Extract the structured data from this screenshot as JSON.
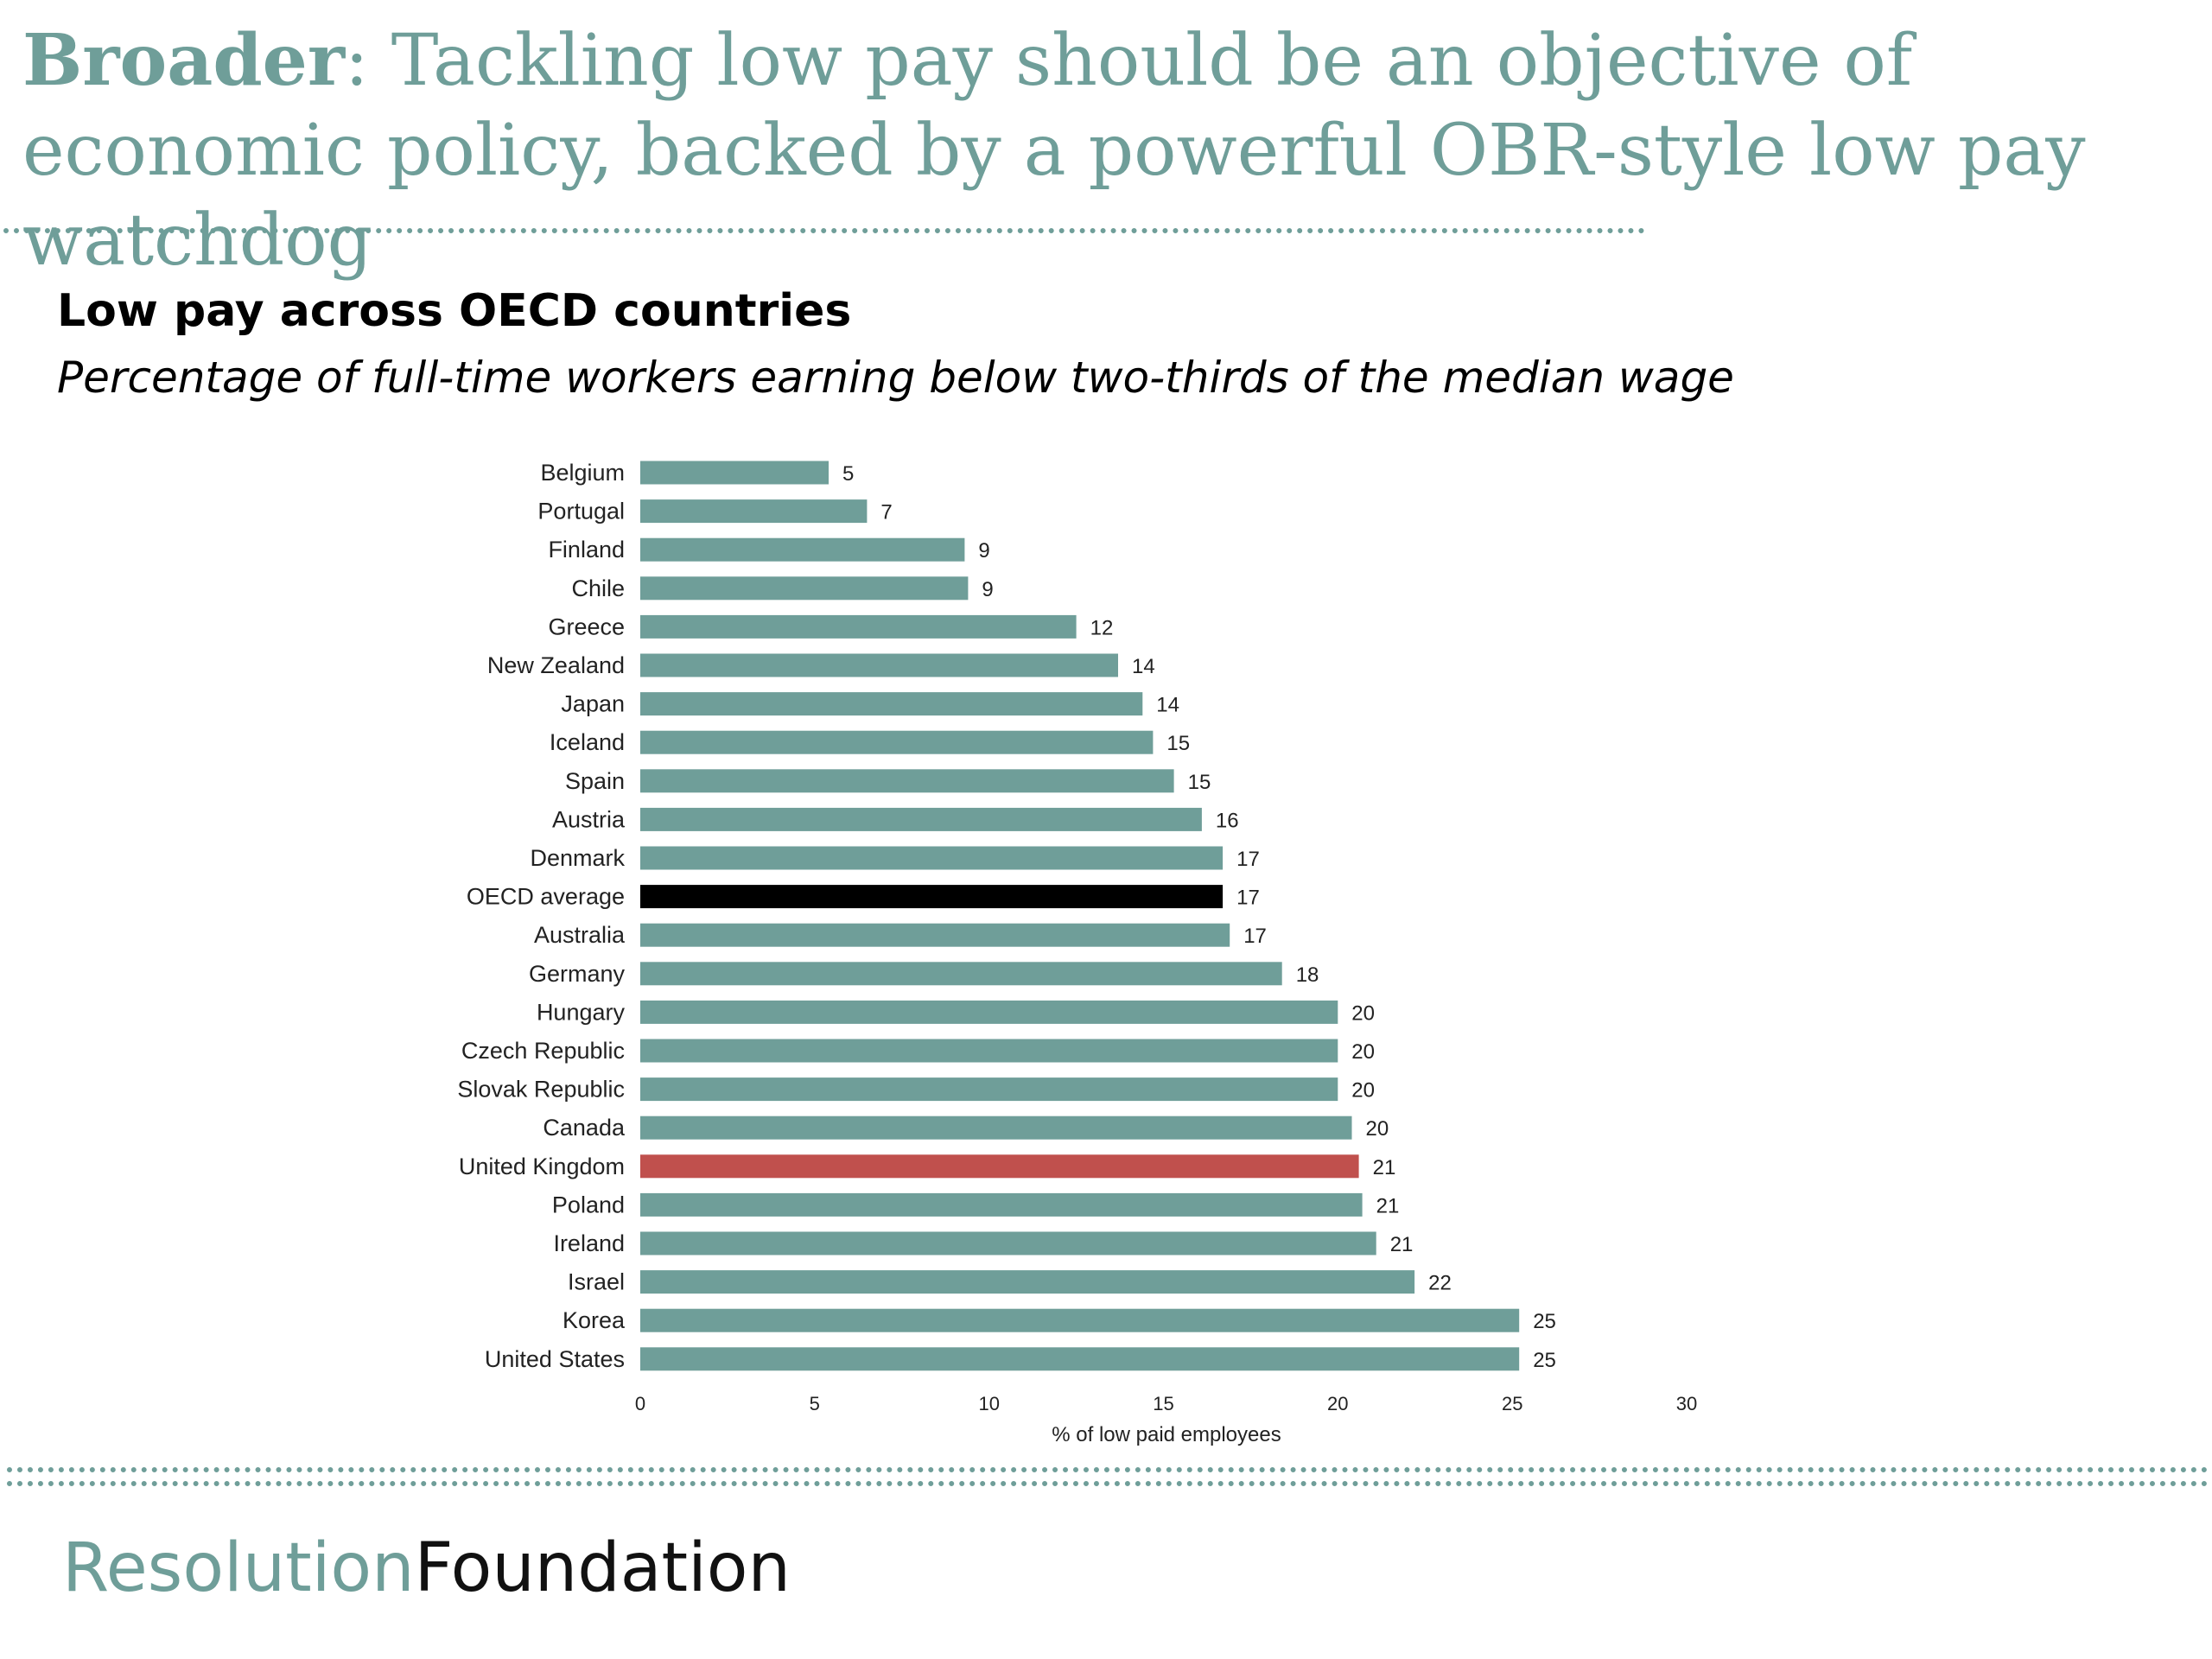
{
  "slide": {
    "headline_lead": "Broader",
    "headline_rest": ": Tackling low pay should be an objective of economic policy, backed by a powerful OBR-style low pay watchdog",
    "brand_part1": "Resolution",
    "brand_part2": "Foundation"
  },
  "colors": {
    "accent": "#6f9e99",
    "bar_default": "#6f9e99",
    "bar_average": "#000000",
    "bar_uk": "#c0504d"
  },
  "chart_data": {
    "type": "bar",
    "orientation": "horizontal",
    "title": "Low pay across OECD countries",
    "subtitle": "Percentage of full-time workers earning below two-thirds of the median wage",
    "xlabel": "% of low paid employees",
    "ylabel": "",
    "xlim": [
      0,
      30
    ],
    "xticks": [
      0,
      5,
      10,
      15,
      20,
      25,
      30
    ],
    "grid": false,
    "legend": "none",
    "bars": [
      {
        "label": "Belgium",
        "value": 5.4,
        "display": "5",
        "highlight": "none"
      },
      {
        "label": "Portugal",
        "value": 6.5,
        "display": "7",
        "highlight": "none"
      },
      {
        "label": "Finland",
        "value": 9.3,
        "display": "9",
        "highlight": "none"
      },
      {
        "label": "Chile",
        "value": 9.4,
        "display": "9",
        "highlight": "none"
      },
      {
        "label": "Greece",
        "value": 12.5,
        "display": "12",
        "highlight": "none"
      },
      {
        "label": "New Zealand",
        "value": 13.7,
        "display": "14",
        "highlight": "none"
      },
      {
        "label": "Japan",
        "value": 14.4,
        "display": "14",
        "highlight": "none"
      },
      {
        "label": "Iceland",
        "value": 14.7,
        "display": "15",
        "highlight": "none"
      },
      {
        "label": "Spain",
        "value": 15.3,
        "display": "15",
        "highlight": "none"
      },
      {
        "label": "Austria",
        "value": 16.1,
        "display": "16",
        "highlight": "none"
      },
      {
        "label": "Denmark",
        "value": 16.7,
        "display": "17",
        "highlight": "none"
      },
      {
        "label": "OECD average",
        "value": 16.7,
        "display": "17",
        "highlight": "average"
      },
      {
        "label": "Australia",
        "value": 16.9,
        "display": "17",
        "highlight": "none"
      },
      {
        "label": "Germany",
        "value": 18.4,
        "display": "18",
        "highlight": "none"
      },
      {
        "label": "Hungary",
        "value": 20.0,
        "display": "20",
        "highlight": "none"
      },
      {
        "label": "Czech Republic",
        "value": 20.0,
        "display": "20",
        "highlight": "none"
      },
      {
        "label": "Slovak Republic",
        "value": 20.0,
        "display": "20",
        "highlight": "none"
      },
      {
        "label": "Canada",
        "value": 20.4,
        "display": "20",
        "highlight": "none"
      },
      {
        "label": "United Kingdom",
        "value": 20.6,
        "display": "21",
        "highlight": "uk"
      },
      {
        "label": "Poland",
        "value": 20.7,
        "display": "21",
        "highlight": "none"
      },
      {
        "label": "Ireland",
        "value": 21.1,
        "display": "21",
        "highlight": "none"
      },
      {
        "label": "Israel",
        "value": 22.2,
        "display": "22",
        "highlight": "none"
      },
      {
        "label": "Korea",
        "value": 25.2,
        "display": "25",
        "highlight": "none"
      },
      {
        "label": "United States",
        "value": 25.2,
        "display": "25",
        "highlight": "none"
      }
    ]
  }
}
